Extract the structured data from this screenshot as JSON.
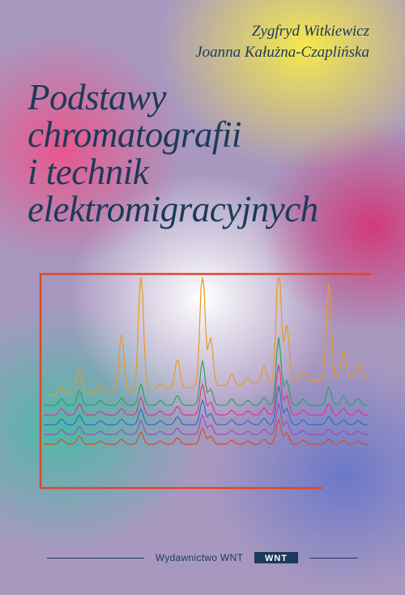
{
  "authors": {
    "line1": "Zygfryd Witkiewicz",
    "line2": "Joanna Kałużna-Czaplińska",
    "color": "#1b3a5a",
    "fontsize": 19
  },
  "title": {
    "line1": "Podstawy",
    "line2": "chromatografii",
    "line3": "i technik",
    "line4": "elektromigracyjnych",
    "color": "#1b3a5a",
    "fontsize": 45
  },
  "chart": {
    "type": "chromatogram",
    "frame_stroke": "#d84a2a",
    "frame_stroke_width": 2.5,
    "background": "transparent",
    "xlim": [
      0,
      400
    ],
    "ylim": [
      0,
      260
    ],
    "n_traces": 6,
    "baseline_offsets": [
      212,
      200,
      188,
      176,
      164,
      152
    ],
    "trace_colors": [
      "#d84a2a",
      "#9a4fb0",
      "#2e6fbf",
      "#d63a8a",
      "#2fa060",
      "#e99a20"
    ],
    "trace_line_width": 1.2,
    "peaks": [
      {
        "x": 22,
        "h": [
          6,
          6,
          7,
          8,
          8,
          9
        ],
        "w": 3
      },
      {
        "x": 44,
        "h": [
          10,
          10,
          12,
          14,
          18,
          30
        ],
        "w": 3
      },
      {
        "x": 70,
        "h": [
          4,
          4,
          5,
          5,
          6,
          8
        ],
        "w": 3
      },
      {
        "x": 96,
        "h": [
          6,
          6,
          7,
          8,
          9,
          70
        ],
        "w": 3
      },
      {
        "x": 120,
        "h": [
          15,
          17,
          19,
          22,
          26,
          150
        ],
        "w": 3
      },
      {
        "x": 144,
        "h": [
          4,
          4,
          5,
          5,
          6,
          7
        ],
        "w": 3
      },
      {
        "x": 165,
        "h": [
          8,
          8,
          10,
          11,
          12,
          36
        ],
        "w": 3
      },
      {
        "x": 196,
        "h": [
          20,
          24,
          30,
          38,
          55,
          150
        ],
        "w": 3
      },
      {
        "x": 206,
        "h": [
          10,
          12,
          14,
          16,
          20,
          60
        ],
        "w": 3
      },
      {
        "x": 232,
        "h": [
          5,
          5,
          6,
          6,
          8,
          14
        ],
        "w": 3
      },
      {
        "x": 252,
        "h": [
          4,
          4,
          5,
          5,
          6,
          8
        ],
        "w": 3
      },
      {
        "x": 272,
        "h": [
          6,
          7,
          8,
          9,
          10,
          22
        ],
        "w": 3
      },
      {
        "x": 290,
        "h": [
          30,
          38,
          48,
          62,
          84,
          150
        ],
        "w": 3
      },
      {
        "x": 300,
        "h": [
          14,
          16,
          20,
          24,
          30,
          70
        ],
        "w": 3
      },
      {
        "x": 320,
        "h": [
          5,
          5,
          6,
          6,
          8,
          12
        ],
        "w": 3
      },
      {
        "x": 352,
        "h": [
          6,
          7,
          10,
          14,
          22,
          120
        ],
        "w": 3
      },
      {
        "x": 370,
        "h": [
          5,
          5,
          6,
          8,
          12,
          36
        ],
        "w": 3
      },
      {
        "x": 388,
        "h": [
          4,
          4,
          5,
          6,
          8,
          18
        ],
        "w": 3
      }
    ],
    "drift_top_trace": 22
  },
  "publisher": {
    "label": "Wydawnictwo WNT",
    "label_color": "#1b3a5a",
    "label_fontsize": 12,
    "rule_color": "#1b3a5a",
    "logo_bar_color": "#1b3a5a",
    "logo_text": "WNT",
    "logo_text_color": "#ffffff"
  }
}
